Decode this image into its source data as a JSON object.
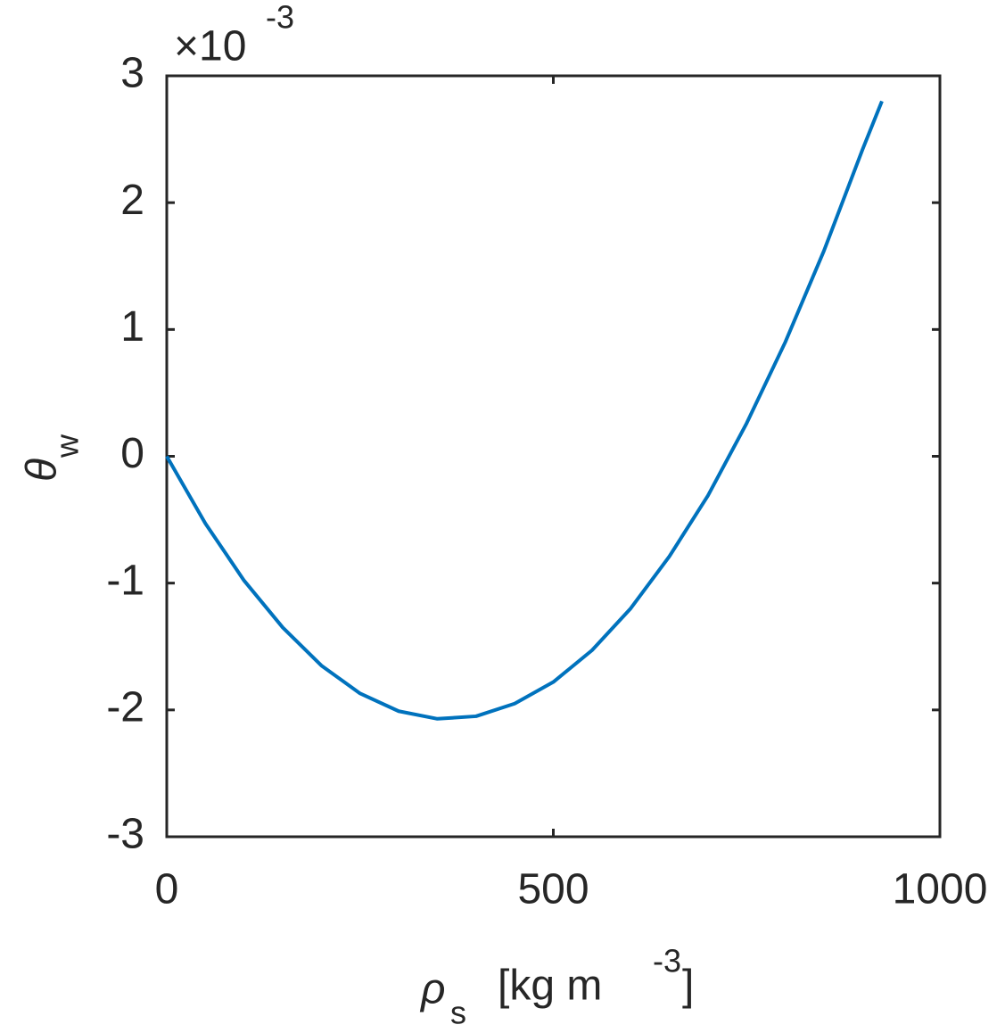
{
  "chart_data": {
    "type": "line",
    "x_label_parts": [
      "ρ",
      "s",
      "[kg m",
      "-3",
      "]"
    ],
    "y_label_parts": [
      "θ",
      "w"
    ],
    "y_multiplier_parts": [
      "×10",
      "-3"
    ],
    "x": [
      0,
      50,
      100,
      150,
      200,
      250,
      300,
      350,
      400,
      450,
      500,
      550,
      600,
      650,
      700,
      750,
      800,
      850,
      900,
      925
    ],
    "series": [
      {
        "color": "#0072bd",
        "values": [
          0,
          -0.53,
          -0.98,
          -1.35,
          -1.65,
          -1.87,
          -2.01,
          -2.07,
          -2.05,
          -1.95,
          -1.78,
          -1.53,
          -1.2,
          -0.79,
          -0.31,
          0.26,
          0.9,
          1.62,
          2.42,
          2.8
        ]
      }
    ],
    "xlim": [
      0,
      1000
    ],
    "xticks": [
      0,
      500,
      1000
    ],
    "ylim": [
      -3,
      3
    ],
    "yticks": [
      -3,
      -2,
      -1,
      0,
      1,
      2,
      3
    ],
    "grid": false,
    "box": true
  }
}
